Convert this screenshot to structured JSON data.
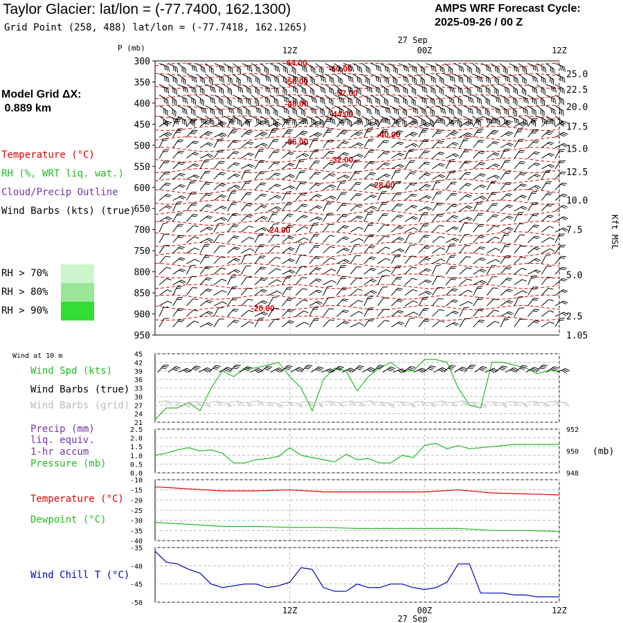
{
  "header": {
    "title": "Taylor Glacier:  lat/lon = (-77.7400, 162.1300)",
    "grid_point": "Grid Point (258, 488) lat/lon = (-77.7418, 162.1265)",
    "cycle_line1": "AMPS WRF Forecast Cycle:",
    "cycle_line2": "2025-09-26 / 00  Z"
  },
  "model_grid": {
    "line1": "Model Grid ΔX:",
    "line2": " 0.889 km"
  },
  "legend": {
    "temperature": "Temperature (°C)",
    "rh": "RH (%, WRT liq. wat.)",
    "cloud": "Cloud/Precip Outline",
    "wind": "Wind Barbs (kts) (true)",
    "rh70": "RH > 70%",
    "rh80": "RH > 80%",
    "rh90": "RH > 90%"
  },
  "colors": {
    "temperature": "#dd0000",
    "rh": "#22bb22",
    "cloud": "#7733aa",
    "rh70": "#ccf5cc",
    "rh80": "#99e699",
    "rh90": "#33dd33",
    "wind_chill": "#0000bb",
    "barb_grid": "#bbbbbb"
  },
  "chart_data": [
    {
      "type": "heatmap",
      "name": "upper-air",
      "ylabel": "P (mb)",
      "y2label": "Kft MSL",
      "pressure_ticks": [
        "300",
        "350",
        "400",
        "450",
        "500",
        "550",
        "600",
        "650",
        "700",
        "750",
        "800",
        "850",
        "900",
        "950"
      ],
      "pressure_range": [
        300,
        950
      ],
      "height_ticks": [
        {
          "label": "25.0",
          "p": 330
        },
        {
          "label": "22.5",
          "p": 367
        },
        {
          "label": "20.0",
          "p": 408
        },
        {
          "label": "17.5",
          "p": 455
        },
        {
          "label": "15.0",
          "p": 508
        },
        {
          "label": "12.5",
          "p": 563
        },
        {
          "label": "10.0",
          "p": 630
        },
        {
          "label": "7.5",
          "p": 700
        },
        {
          "label": "5.0",
          "p": 807
        },
        {
          "label": "2.5",
          "p": 905
        },
        {
          "label": "1.05",
          "p": 950
        }
      ],
      "date_label": "27 Sep",
      "time_ticks": [
        {
          "label": "12Z",
          "h": 12
        },
        {
          "label": "00Z",
          "h": 24
        },
        {
          "label": "12Z",
          "h": 36
        }
      ],
      "time_range": [
        0,
        36
      ],
      "temperature_labels": [
        {
          "text": "-64.00",
          "h": 12.5,
          "p": 303
        },
        {
          "text": "-60.00",
          "h": 16.5,
          "p": 317
        },
        {
          "text": "-56.00",
          "h": 12.6,
          "p": 348
        },
        {
          "text": "-52.00",
          "h": 17,
          "p": 375
        },
        {
          "text": "-48.00",
          "h": 12.6,
          "p": 400
        },
        {
          "text": "-44.00",
          "h": 16.6,
          "p": 425
        },
        {
          "text": "-40.00",
          "h": 20.8,
          "p": 473
        },
        {
          "text": "-36.00",
          "h": 12.6,
          "p": 490
        },
        {
          "text": "-32.00",
          "h": 16.6,
          "p": 533
        },
        {
          "text": "-28.00",
          "h": 20.3,
          "p": 593
        },
        {
          "text": "-24.00",
          "h": 11,
          "p": 700
        },
        {
          "text": "-20.00",
          "h": 9.6,
          "p": 885
        }
      ]
    },
    {
      "type": "line",
      "name": "wind-10m",
      "label": "Wind at 10 m",
      "series_labels": [
        "Wind Spd (kts)",
        "Wind Barbs (true)",
        "Wind Barbs (grid)"
      ],
      "y_ticks": [
        "45",
        "42",
        "39",
        "36",
        "33",
        "30",
        "27",
        "24",
        "21"
      ],
      "ylim": [
        21,
        45
      ],
      "x": [
        0,
        1,
        2,
        3,
        4,
        5,
        6,
        7,
        8,
        9,
        10,
        11,
        12,
        13,
        14,
        15,
        16,
        17,
        18,
        19,
        20,
        21,
        22,
        23,
        24,
        25,
        26,
        27,
        28,
        29,
        30,
        31,
        32,
        33,
        34,
        35,
        36
      ],
      "wind_speed": [
        22,
        26,
        26,
        28,
        25,
        33,
        39,
        37,
        40,
        40,
        41,
        42,
        37,
        33,
        25,
        36,
        40,
        39,
        32,
        37,
        40,
        42,
        39,
        39,
        43,
        43,
        42,
        33,
        27,
        26,
        42,
        42,
        41,
        40,
        38,
        39,
        39
      ]
    },
    {
      "type": "line",
      "name": "precip-pressure",
      "series_labels": [
        "Precip (mm)",
        "liq. equiv.",
        "1-hr accum",
        "Pressure (mb)"
      ],
      "y_ticks": [
        "2.5",
        "2.0",
        "1.5",
        "1.0",
        "0.5",
        "0.0"
      ],
      "y2_ticks": [
        "952",
        "950",
        "948"
      ],
      "ylim": [
        0,
        2.5
      ],
      "y2lim": [
        948,
        952
      ],
      "x": [
        0,
        1,
        2,
        3,
        4,
        5,
        6,
        7,
        8,
        9,
        10,
        11,
        12,
        13,
        14,
        15,
        16,
        17,
        18,
        19,
        20,
        21,
        22,
        23,
        24,
        25,
        26,
        27,
        28,
        29,
        30,
        31,
        32,
        33,
        34,
        35,
        36
      ],
      "pressure": [
        949.6,
        949.8,
        950.1,
        950.3,
        950.0,
        950.1,
        949.8,
        948.9,
        948.9,
        949.2,
        949.3,
        949.5,
        950.3,
        949.6,
        949.4,
        949.2,
        949.0,
        949.7,
        949.2,
        949.3,
        948.9,
        948.9,
        949.6,
        949.4,
        950.5,
        950.7,
        950.2,
        950.5,
        950.2,
        950.3,
        950.4,
        950.5,
        950.6,
        950.6,
        950.6,
        950.6,
        950.6
      ]
    },
    {
      "type": "line",
      "name": "temperature-dewpoint",
      "series_labels": [
        "Temperature (°C)",
        "Dewpoint (°C)"
      ],
      "y_ticks": [
        "-10",
        "-15",
        "-20",
        "-25",
        "-30",
        "-35",
        "-40"
      ],
      "ylim": [
        -40,
        -10
      ],
      "x": [
        0,
        3,
        6,
        9,
        12,
        15,
        18,
        21,
        24,
        27,
        30,
        33,
        36
      ],
      "temperature": [
        -13.5,
        -14.5,
        -15.5,
        -15.5,
        -15,
        -16,
        -16,
        -16,
        -16,
        -15,
        -16.5,
        -17,
        -17.5
      ],
      "dewpoint": [
        -31,
        -32,
        -33,
        -33,
        -33.5,
        -33.5,
        -34,
        -34,
        -34,
        -34,
        -35,
        -35,
        -35.5
      ]
    },
    {
      "type": "line",
      "name": "wind-chill",
      "series_labels": [
        "Wind Chill T (°C)"
      ],
      "y_ticks": [
        "-35",
        "-40",
        "-45",
        "-50"
      ],
      "ylim": [
        -50,
        -35
      ],
      "x": [
        0,
        1,
        2,
        3,
        4,
        5,
        6,
        7,
        8,
        9,
        10,
        11,
        12,
        13,
        14,
        15,
        16,
        17,
        18,
        19,
        20,
        21,
        22,
        23,
        24,
        25,
        26,
        27,
        28,
        29,
        30,
        31,
        32,
        33,
        34,
        35,
        36
      ],
      "wind_chill": [
        -36,
        -39,
        -39.5,
        -41,
        -42,
        -45,
        -46,
        -45.5,
        -45,
        -45,
        -46,
        -45.5,
        -44.5,
        -40.5,
        -41,
        -46,
        -47,
        -47,
        -45,
        -46,
        -46,
        -45,
        -45,
        -46,
        -46.5,
        -46,
        -44.5,
        -39.5,
        -39.5,
        -47.5,
        -47.5,
        -47.5,
        -48,
        -48,
        -48.5,
        -48.5,
        -48.5
      ]
    }
  ]
}
